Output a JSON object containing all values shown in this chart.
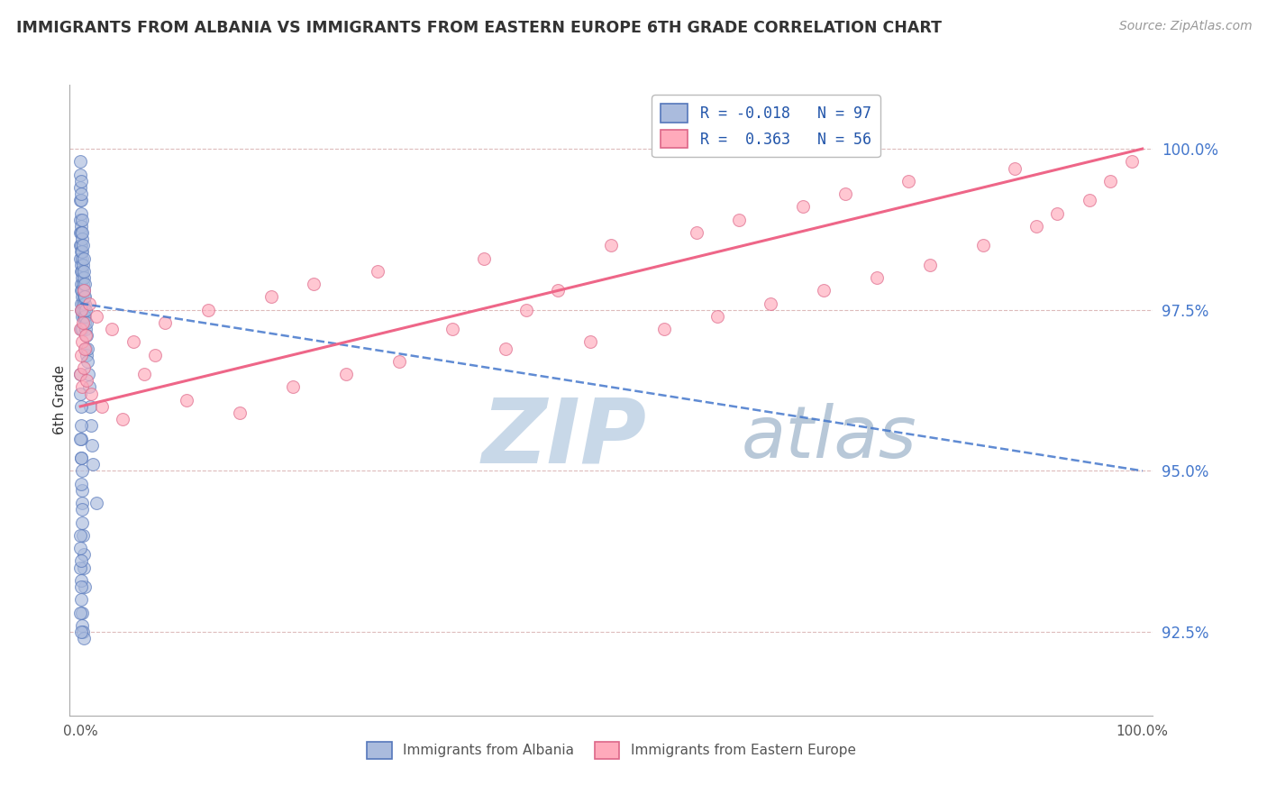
{
  "title": "IMMIGRANTS FROM ALBANIA VS IMMIGRANTS FROM EASTERN EUROPE 6TH GRADE CORRELATION CHART",
  "source": "Source: ZipAtlas.com",
  "ylabel": "6th Grade",
  "ytick_labels": [
    "92.5%",
    "95.0%",
    "97.5%",
    "100.0%"
  ],
  "ytick_values": [
    92.5,
    95.0,
    97.5,
    100.0
  ],
  "ymin": 91.2,
  "ymax": 101.0,
  "xmin": -1.0,
  "xmax": 101.0,
  "legend_R_blue": "R = -0.018",
  "legend_N_blue": "N = 97",
  "legend_R_pink": "R =  0.363",
  "legend_N_pink": "N = 56",
  "color_blue_fill": "#AABBDD",
  "color_pink_fill": "#FFAABB",
  "color_blue_edge": "#5577BB",
  "color_pink_edge": "#DD6688",
  "color_blue_line": "#4477CC",
  "color_pink_line": "#EE6688",
  "watermark_zip": "ZIP",
  "watermark_atlas": "atlas",
  "watermark_color_zip": "#C8D8E8",
  "watermark_color_atlas": "#B8C8D8",
  "blue_scatter_x": [
    0.0,
    0.0,
    0.0,
    0.0,
    0.0,
    0.0,
    0.0,
    0.0,
    0.05,
    0.05,
    0.05,
    0.05,
    0.05,
    0.05,
    0.05,
    0.1,
    0.1,
    0.1,
    0.1,
    0.1,
    0.1,
    0.1,
    0.1,
    0.15,
    0.15,
    0.15,
    0.15,
    0.15,
    0.15,
    0.2,
    0.2,
    0.2,
    0.2,
    0.2,
    0.2,
    0.25,
    0.25,
    0.25,
    0.25,
    0.3,
    0.3,
    0.3,
    0.3,
    0.35,
    0.35,
    0.35,
    0.4,
    0.4,
    0.4,
    0.45,
    0.45,
    0.5,
    0.5,
    0.5,
    0.55,
    0.6,
    0.6,
    0.65,
    0.7,
    0.75,
    0.8,
    0.9,
    1.0,
    1.1,
    1.2,
    1.5,
    0.0,
    0.0,
    0.05,
    0.05,
    0.1,
    0.1,
    0.15,
    0.15,
    0.2,
    0.2,
    0.25,
    0.3,
    0.35,
    0.4,
    0.0,
    0.0,
    0.05,
    0.1,
    0.15,
    0.2,
    0.25,
    0.3,
    0.0,
    0.05,
    0.1,
    0.15,
    0.0,
    0.05,
    0.1,
    0.0,
    0.05
  ],
  "blue_scatter_y": [
    99.8,
    99.6,
    99.4,
    99.2,
    98.9,
    98.7,
    98.5,
    98.3,
    99.5,
    99.2,
    98.8,
    98.5,
    98.2,
    97.9,
    97.6,
    99.3,
    99.0,
    98.7,
    98.4,
    98.1,
    97.8,
    97.5,
    97.2,
    98.9,
    98.6,
    98.3,
    98.0,
    97.7,
    97.4,
    98.7,
    98.4,
    98.1,
    97.8,
    97.5,
    97.2,
    98.5,
    98.2,
    97.9,
    97.6,
    98.3,
    98.0,
    97.7,
    97.4,
    98.1,
    97.8,
    97.5,
    97.9,
    97.6,
    97.3,
    97.7,
    97.4,
    97.5,
    97.2,
    96.9,
    97.3,
    97.1,
    96.8,
    96.9,
    96.7,
    96.5,
    96.3,
    96.0,
    95.7,
    95.4,
    95.1,
    94.5,
    96.5,
    96.2,
    96.0,
    95.7,
    95.5,
    95.2,
    95.0,
    94.7,
    94.5,
    94.2,
    94.0,
    93.7,
    93.5,
    93.2,
    93.8,
    93.5,
    93.3,
    93.0,
    92.8,
    92.6,
    92.5,
    92.4,
    95.5,
    95.2,
    94.8,
    94.4,
    94.0,
    93.6,
    93.2,
    92.8,
    92.5
  ],
  "pink_scatter_x": [
    0.0,
    0.0,
    0.05,
    0.1,
    0.15,
    0.2,
    0.25,
    0.3,
    0.35,
    0.4,
    0.5,
    0.6,
    0.8,
    1.0,
    1.5,
    2.0,
    3.0,
    4.0,
    5.0,
    6.0,
    7.0,
    8.0,
    10.0,
    12.0,
    15.0,
    18.0,
    20.0,
    22.0,
    25.0,
    28.0,
    30.0,
    35.0,
    38.0,
    40.0,
    42.0,
    45.0,
    48.0,
    50.0,
    55.0,
    58.0,
    60.0,
    62.0,
    65.0,
    68.0,
    70.0,
    72.0,
    75.0,
    78.0,
    80.0,
    85.0,
    88.0,
    90.0,
    92.0,
    95.0,
    97.0,
    99.0
  ],
  "pink_scatter_y": [
    97.2,
    96.5,
    97.5,
    96.8,
    97.0,
    96.3,
    97.3,
    96.6,
    97.8,
    96.9,
    97.1,
    96.4,
    97.6,
    96.2,
    97.4,
    96.0,
    97.2,
    95.8,
    97.0,
    96.5,
    96.8,
    97.3,
    96.1,
    97.5,
    95.9,
    97.7,
    96.3,
    97.9,
    96.5,
    98.1,
    96.7,
    97.2,
    98.3,
    96.9,
    97.5,
    97.8,
    97.0,
    98.5,
    97.2,
    98.7,
    97.4,
    98.9,
    97.6,
    99.1,
    97.8,
    99.3,
    98.0,
    99.5,
    98.2,
    98.5,
    99.7,
    98.8,
    99.0,
    99.2,
    99.5,
    99.8
  ],
  "blue_line_x0": 0.0,
  "blue_line_x1": 100.0,
  "blue_line_y0": 97.6,
  "blue_line_y1": 95.0,
  "pink_line_x0": 0.0,
  "pink_line_x1": 100.0,
  "pink_line_y0": 96.0,
  "pink_line_y1": 100.0
}
